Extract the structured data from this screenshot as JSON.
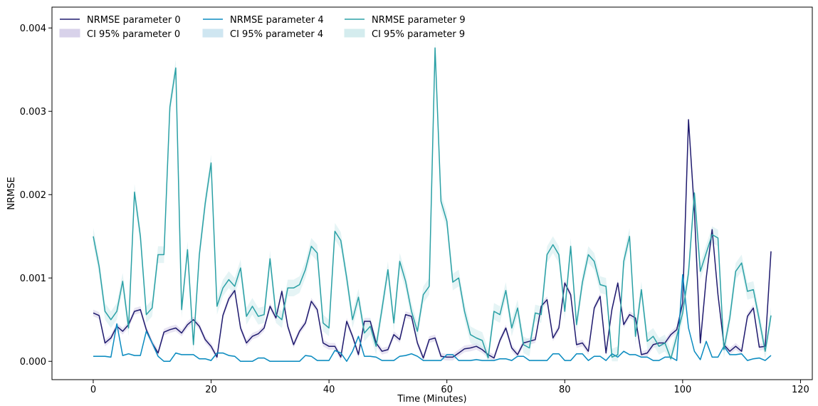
{
  "chart_data": {
    "type": "line",
    "xlabel": "Time (Minutes)",
    "ylabel": "NRMSE",
    "xlim": [
      -7,
      122
    ],
    "ylim": [
      -0.00022,
      0.00425
    ],
    "x_ticks": [
      0,
      20,
      40,
      60,
      80,
      100,
      120
    ],
    "x_tick_labels": [
      "0",
      "20",
      "40",
      "60",
      "80",
      "100",
      "120"
    ],
    "y_ticks": [
      0,
      0.001,
      0.002,
      0.003,
      0.004
    ],
    "y_tick_labels": [
      "0.000",
      "0.001",
      "0.002",
      "0.003",
      "0.004"
    ],
    "grid": false,
    "legend_position": "top-left",
    "x": [
      0,
      1,
      2,
      3,
      4,
      5,
      6,
      7,
      8,
      9,
      10,
      11,
      12,
      13,
      14,
      15,
      16,
      17,
      18,
      19,
      20,
      21,
      22,
      23,
      24,
      25,
      26,
      27,
      28,
      29,
      30,
      31,
      32,
      33,
      34,
      35,
      36,
      37,
      38,
      39,
      40,
      41,
      42,
      43,
      44,
      45,
      46,
      47,
      48,
      49,
      50,
      51,
      52,
      53,
      54,
      55,
      56,
      57,
      58,
      59,
      60,
      61,
      62,
      63,
      64,
      65,
      66,
      67,
      68,
      69,
      70,
      71,
      72,
      73,
      74,
      75,
      76,
      77,
      78,
      79,
      80,
      81,
      82,
      83,
      84,
      85,
      86,
      87,
      88,
      89,
      90,
      91,
      92,
      93,
      94,
      95,
      96,
      97,
      98,
      99,
      100,
      101,
      102,
      103,
      104,
      105,
      106,
      107,
      108,
      109,
      110,
      111,
      112,
      113,
      114,
      115
    ],
    "series": [
      {
        "name": "NRMSE parameter 0",
        "ci_name": "CI 95% parameter 0",
        "color": "#1f1a6e",
        "band_color": "#d8d2ea",
        "values": [
          0.00058,
          0.00055,
          0.00022,
          0.00028,
          0.00042,
          0.00036,
          0.00044,
          0.0006,
          0.00062,
          0.00038,
          0.00022,
          0.0001,
          0.00035,
          0.00038,
          0.0004,
          0.00034,
          0.00044,
          0.0005,
          0.00042,
          0.00026,
          0.00018,
          5e-05,
          0.00055,
          0.00075,
          0.00085,
          0.0004,
          0.00022,
          0.0003,
          0.00033,
          0.0004,
          0.00066,
          0.00052,
          0.00084,
          0.00042,
          0.0002,
          0.00036,
          0.00046,
          0.00072,
          0.00062,
          0.00022,
          0.00018,
          0.00018,
          5e-05,
          0.00048,
          0.0003,
          8e-05,
          0.00048,
          0.00048,
          0.00022,
          0.00012,
          0.00014,
          0.00032,
          0.00026,
          0.00056,
          0.00054,
          0.00022,
          4e-05,
          0.00026,
          0.00028,
          6e-05,
          5e-05,
          5e-05,
          0.0001,
          0.00015,
          0.00016,
          0.00018,
          0.00014,
          8e-05,
          4e-05,
          0.00025,
          0.0004,
          0.00016,
          8e-05,
          0.00022,
          0.00024,
          0.00026,
          0.00066,
          0.00074,
          0.00028,
          0.0004,
          0.00094,
          0.0008,
          0.0002,
          0.00022,
          0.00012,
          0.00064,
          0.00078,
          0.0001,
          0.00062,
          0.00094,
          0.00044,
          0.00056,
          0.00052,
          8e-05,
          0.0001,
          0.0002,
          0.00022,
          0.00022,
          0.00032,
          0.00038,
          0.0007,
          0.0029,
          0.0018,
          0.00022,
          0.001,
          0.00158,
          0.0008,
          0.0002,
          0.00012,
          0.00018,
          0.00012,
          0.00054,
          0.00064,
          0.00017,
          0.00018,
          0.00132
        ],
        "ci_half_width": 4e-05
      },
      {
        "name": "NRMSE parameter 4",
        "ci_name": "CI 95% parameter 4",
        "color": "#0a8bc0",
        "band_color": "#cfe6f1",
        "values": [
          6e-05,
          6e-05,
          6e-05,
          5e-05,
          0.00045,
          7e-05,
          9e-05,
          7e-05,
          7e-05,
          0.00036,
          0.00022,
          6e-05,
          0.0,
          0.0,
          0.0001,
          8e-05,
          8e-05,
          8e-05,
          3e-05,
          3e-05,
          1e-05,
          0.0001,
          0.0001,
          7e-05,
          6e-05,
          0.0,
          0.0,
          0.0,
          4e-05,
          4e-05,
          0.0,
          0.0,
          0.0,
          0.0,
          0.0,
          0.0,
          7e-05,
          6e-05,
          1e-05,
          1e-05,
          1e-05,
          0.00013,
          0.0001,
          0.0,
          0.00012,
          0.0003,
          6e-05,
          6e-05,
          5e-05,
          1e-05,
          1e-05,
          1e-05,
          6e-05,
          7e-05,
          9e-05,
          6e-05,
          1e-05,
          1e-05,
          1e-05,
          1e-05,
          8e-05,
          8e-05,
          1e-05,
          1e-05,
          1e-05,
          2e-05,
          1e-05,
          1e-05,
          1e-05,
          3e-05,
          3e-05,
          1e-05,
          6e-05,
          6e-05,
          1e-05,
          1e-05,
          1e-05,
          1e-05,
          9e-05,
          9e-05,
          1e-05,
          1e-05,
          9e-05,
          9e-05,
          1e-05,
          6e-05,
          6e-05,
          1e-05,
          9e-05,
          5e-05,
          0.00012,
          8e-05,
          8e-05,
          5e-05,
          5e-05,
          1e-05,
          1e-05,
          5e-05,
          5e-05,
          1e-05,
          0.00104,
          0.0004,
          0.00012,
          2e-05,
          0.00024,
          5e-05,
          5e-05,
          0.00018,
          8e-05,
          8e-05,
          9e-05,
          1e-05,
          3e-05,
          4e-05,
          1e-05,
          7e-05
        ],
        "ci_half_width": 1e-05
      },
      {
        "name": "NRMSE parameter 9",
        "ci_name": "CI 95% parameter 9",
        "color": "#2aa0a5",
        "band_color": "#d4ecee",
        "values": [
          0.0015,
          0.00114,
          0.0006,
          0.0005,
          0.0006,
          0.00096,
          0.0004,
          0.00203,
          0.0015,
          0.00056,
          0.00064,
          0.00128,
          0.00128,
          0.00305,
          0.00352,
          0.00062,
          0.00134,
          0.0002,
          0.00128,
          0.0019,
          0.00238,
          0.00066,
          0.00088,
          0.00098,
          0.0009,
          0.00112,
          0.00054,
          0.00066,
          0.00054,
          0.00056,
          0.00123,
          0.00056,
          0.0005,
          0.00088,
          0.00088,
          0.00092,
          0.0011,
          0.00138,
          0.0013,
          0.00046,
          0.0004,
          0.00156,
          0.00145,
          0.001,
          0.0005,
          0.00077,
          0.00034,
          0.00042,
          0.00018,
          0.00063,
          0.0011,
          0.00046,
          0.0012,
          0.00096,
          0.0006,
          0.00036,
          0.0008,
          0.0009,
          0.00376,
          0.00192,
          0.00168,
          0.00095,
          0.001,
          0.0006,
          0.00032,
          0.00028,
          0.00025,
          4e-05,
          0.0006,
          0.00056,
          0.00085,
          0.0004,
          0.00064,
          0.0002,
          0.00016,
          0.00058,
          0.00056,
          0.00128,
          0.0014,
          0.00128,
          0.0006,
          0.00138,
          0.00044,
          0.00095,
          0.00128,
          0.0012,
          0.00092,
          0.0009,
          5e-05,
          8e-05,
          0.0012,
          0.0015,
          0.0003,
          0.00086,
          0.00024,
          0.0003,
          0.00018,
          0.00022,
          3e-05,
          0.0003,
          0.00058,
          0.00106,
          0.00202,
          0.00108,
          0.0013,
          0.00152,
          0.00148,
          0.00014,
          0.00052,
          0.00108,
          0.00118,
          0.00084,
          0.00086,
          0.0005,
          0.00012,
          0.00055
        ],
        "ci_half_width": 0.0001
      }
    ]
  }
}
